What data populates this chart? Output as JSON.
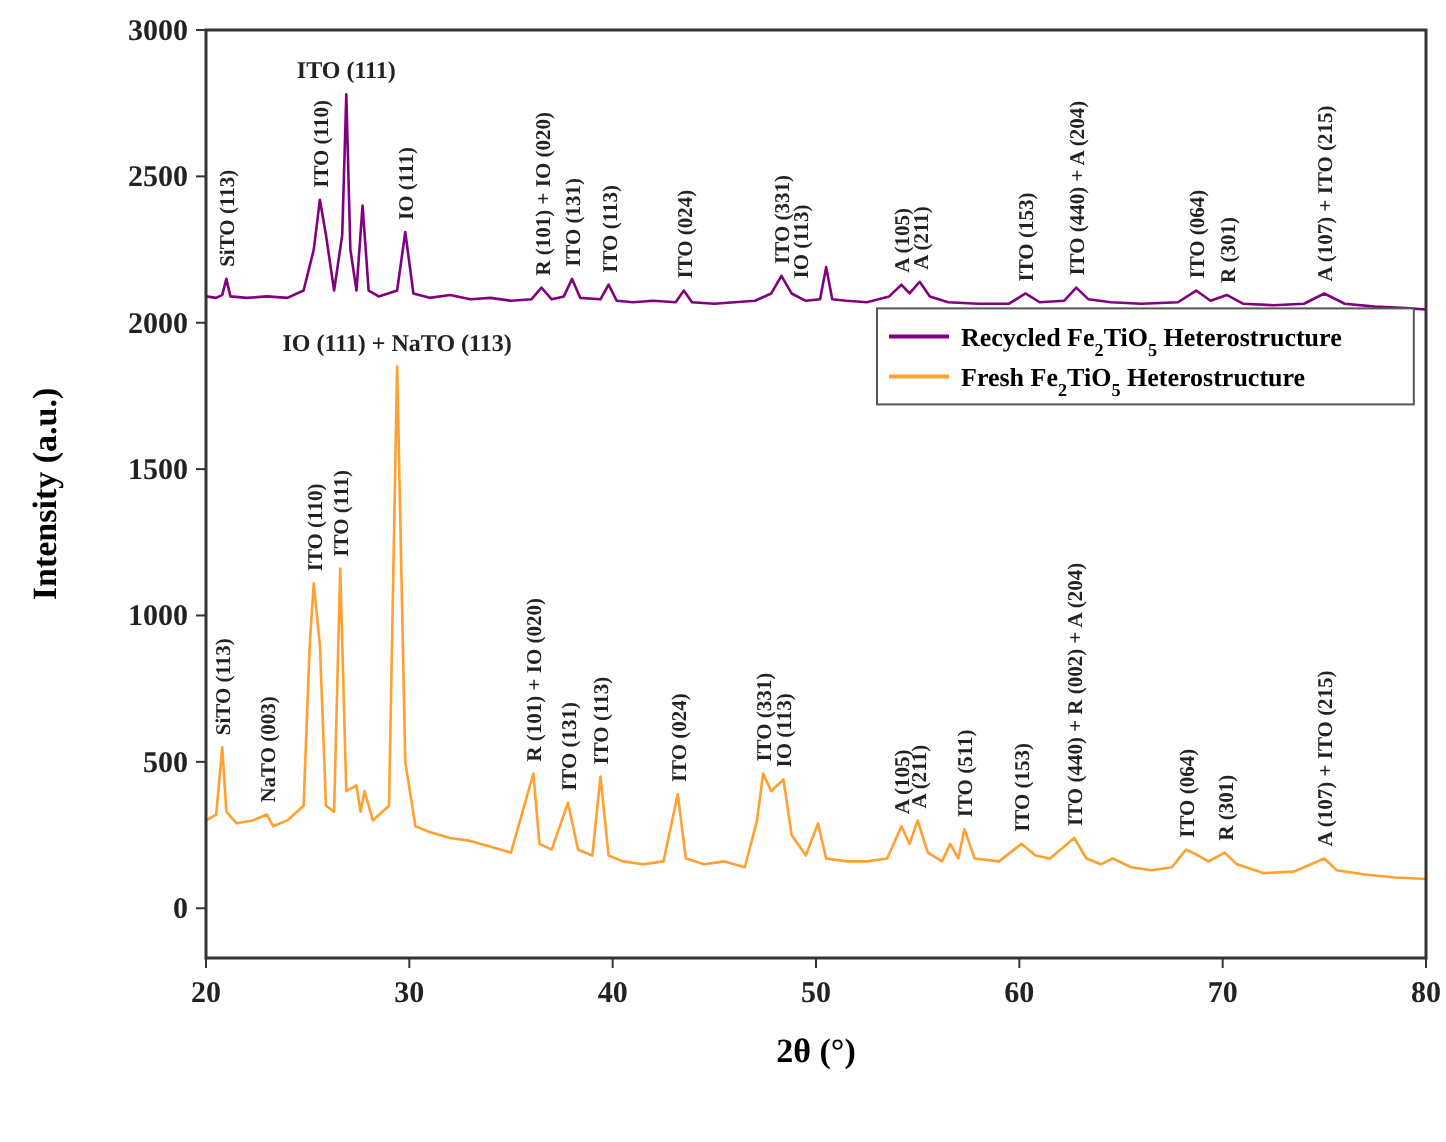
{
  "chart_data": {
    "type": "line",
    "xlabel": "2θ (°)",
    "ylabel": "Intensity (a.u.)",
    "xlim": [
      20,
      80
    ],
    "ylim": [
      -170,
      3000
    ],
    "xticks": [
      20,
      30,
      40,
      50,
      60,
      70,
      80
    ],
    "yticks": [
      0,
      500,
      1000,
      1500,
      2000,
      2500,
      3000
    ],
    "grid": false,
    "legend": "right",
    "marker": "none",
    "line_style": "solid",
    "series": [
      {
        "name": "Recycled Fe$_{2}$TiO$_{5}$ Heterostructure",
        "color": "#800080",
        "x": [
          20,
          20.5,
          20.8,
          21.0,
          21.2,
          22,
          23,
          24,
          24.8,
          25.3,
          25.6,
          25.9,
          26.3,
          26.7,
          26.9,
          27.1,
          27.4,
          27.7,
          28.0,
          28.5,
          29.4,
          29.8,
          30.2,
          31,
          32,
          33,
          34,
          35,
          36,
          36.5,
          37,
          37.6,
          38.0,
          38.4,
          39.4,
          39.8,
          40.2,
          41,
          42,
          43.1,
          43.5,
          43.9,
          45,
          46,
          47,
          47.8,
          48.3,
          48.8,
          49.5,
          50.2,
          50.5,
          50.8,
          51.5,
          52.5,
          53.6,
          54.2,
          54.6,
          55.1,
          55.6,
          56.5,
          58,
          59.5,
          60.3,
          61,
          62.2,
          62.8,
          63.4,
          64.5,
          66,
          67.8,
          68.7,
          69.4,
          70.2,
          71,
          72.5,
          74,
          75,
          76,
          77.5,
          79,
          80
        ],
        "values": [
          2090,
          2085,
          2095,
          2150,
          2090,
          2085,
          2090,
          2085,
          2110,
          2250,
          2420,
          2300,
          2110,
          2300,
          2780,
          2250,
          2110,
          2400,
          2110,
          2090,
          2110,
          2310,
          2100,
          2085,
          2095,
          2080,
          2085,
          2075,
          2080,
          2120,
          2080,
          2090,
          2150,
          2085,
          2080,
          2130,
          2075,
          2070,
          2075,
          2070,
          2110,
          2070,
          2065,
          2070,
          2075,
          2100,
          2160,
          2100,
          2075,
          2080,
          2190,
          2080,
          2075,
          2070,
          2090,
          2130,
          2100,
          2140,
          2090,
          2070,
          2065,
          2065,
          2100,
          2070,
          2075,
          2120,
          2080,
          2070,
          2065,
          2070,
          2110,
          2075,
          2095,
          2065,
          2060,
          2065,
          2100,
          2065,
          2055,
          2050,
          2045
        ]
      },
      {
        "name": "Fresh Fe$_{2}$TiO$_{5}$ Heterostructure",
        "color": "#ffa030",
        "x": [
          20,
          20.5,
          20.8,
          21.0,
          21.5,
          22.3,
          23.0,
          23.3,
          24,
          24.8,
          25.1,
          25.3,
          25.6,
          25.9,
          26.3,
          26.6,
          26.9,
          27.4,
          27.6,
          27.8,
          28.2,
          29.0,
          29.4,
          29.8,
          30.3,
          31,
          32,
          33,
          34,
          35,
          36.1,
          36.4,
          37,
          37.8,
          38.3,
          39.0,
          39.4,
          39.8,
          40.5,
          41.5,
          42.5,
          43.2,
          43.6,
          44.5,
          45.5,
          46.5,
          47.1,
          47.4,
          47.8,
          48.1,
          48.4,
          48.8,
          49.5,
          50.1,
          50.5,
          51.5,
          52.5,
          53.5,
          54.2,
          54.6,
          55.0,
          55.5,
          56.2,
          56.6,
          57.0,
          57.3,
          57.8,
          59,
          60.1,
          60.8,
          61.5,
          62.7,
          63.3,
          64,
          64.6,
          65.5,
          66.5,
          67.5,
          68.2,
          68.8,
          69.3,
          70.1,
          70.7,
          72,
          73.5,
          75,
          75.6,
          77,
          78.5,
          80
        ],
        "values": [
          300,
          320,
          550,
          330,
          290,
          300,
          320,
          280,
          300,
          350,
          900,
          1110,
          900,
          350,
          330,
          1160,
          400,
          420,
          330,
          400,
          300,
          350,
          1850,
          500,
          280,
          260,
          240,
          230,
          210,
          190,
          460,
          220,
          200,
          360,
          200,
          180,
          450,
          180,
          160,
          150,
          160,
          390,
          170,
          150,
          160,
          140,
          300,
          460,
          400,
          420,
          440,
          250,
          180,
          290,
          170,
          160,
          160,
          170,
          280,
          220,
          300,
          190,
          160,
          220,
          170,
          270,
          170,
          160,
          220,
          180,
          170,
          240,
          170,
          150,
          170,
          140,
          130,
          140,
          200,
          180,
          160,
          190,
          150,
          120,
          125,
          170,
          130,
          115,
          105,
          100
        ]
      }
    ],
    "annotations": [
      {
        "text": "SiTO (113)",
        "x": 21.0,
        "y": 2150
      },
      {
        "text": "ITO (110)",
        "x": 25.6,
        "y": 2420
      },
      {
        "text": "ITO (111)",
        "x": 26.9,
        "y": 2780
      },
      {
        "text": "IO (111)",
        "x": 29.8,
        "y": 2310
      },
      {
        "text": "R (101) + IO (020)",
        "x": 36.5,
        "y": 2120
      },
      {
        "text": "ITO (131)",
        "x": 38.0,
        "y": 2150
      },
      {
        "text": "ITO (113)",
        "x": 39.8,
        "y": 2130
      },
      {
        "text": "ITO (024)",
        "x": 43.5,
        "y": 2110
      },
      {
        "text": "ITO (331)",
        "x": 48.3,
        "y": 2160
      },
      {
        "text": "IO (113)",
        "x": 49.2,
        "y": 2110
      },
      {
        "text": "A (105)",
        "x": 54.2,
        "y": 2130
      },
      {
        "text": "A (211)",
        "x": 55.1,
        "y": 2140
      },
      {
        "text": "ITO (153)",
        "x": 60.3,
        "y": 2100
      },
      {
        "text": "ITO (440) + A (204)",
        "x": 62.8,
        "y": 2120
      },
      {
        "text": "ITO (064)",
        "x": 68.7,
        "y": 2110
      },
      {
        "text": "R (301)",
        "x": 70.2,
        "y": 2095
      },
      {
        "text": "A (107) + ITO (215)",
        "x": 75.0,
        "y": 2100
      },
      {
        "text": "SiTO (113)",
        "x": 20.8,
        "y": 550
      },
      {
        "text": "NaTO (003)",
        "x": 23.0,
        "y": 320
      },
      {
        "text": "ITO (110)",
        "x": 25.3,
        "y": 1110
      },
      {
        "text": "ITO (111)",
        "x": 26.6,
        "y": 1160
      },
      {
        "text": "IO (111) + NaTO (113)",
        "x": 29.4,
        "y": 1850
      },
      {
        "text": "R (101) + IO (020)",
        "x": 36.1,
        "y": 460
      },
      {
        "text": "ITO (131)",
        "x": 37.8,
        "y": 360
      },
      {
        "text": "ITO (113)",
        "x": 39.4,
        "y": 450
      },
      {
        "text": "ITO (024)",
        "x": 43.2,
        "y": 390
      },
      {
        "text": "ITO (331)",
        "x": 47.4,
        "y": 460
      },
      {
        "text": "IO (113)",
        "x": 48.4,
        "y": 440
      },
      {
        "text": "A (105)",
        "x": 54.2,
        "y": 280
      },
      {
        "text": "A (211)",
        "x": 55.0,
        "y": 300
      },
      {
        "text": "ITO (511)",
        "x": 57.3,
        "y": 270
      },
      {
        "text": "ITO (153)",
        "x": 60.1,
        "y": 220
      },
      {
        "text": "ITO (440) + R (002) + A (204)",
        "x": 62.7,
        "y": 240
      },
      {
        "text": "ITO (064)",
        "x": 68.2,
        "y": 200
      },
      {
        "text": "R (301)",
        "x": 70.1,
        "y": 190
      },
      {
        "text": "A (107) + ITO (215)",
        "x": 75.0,
        "y": 170
      }
    ]
  }
}
